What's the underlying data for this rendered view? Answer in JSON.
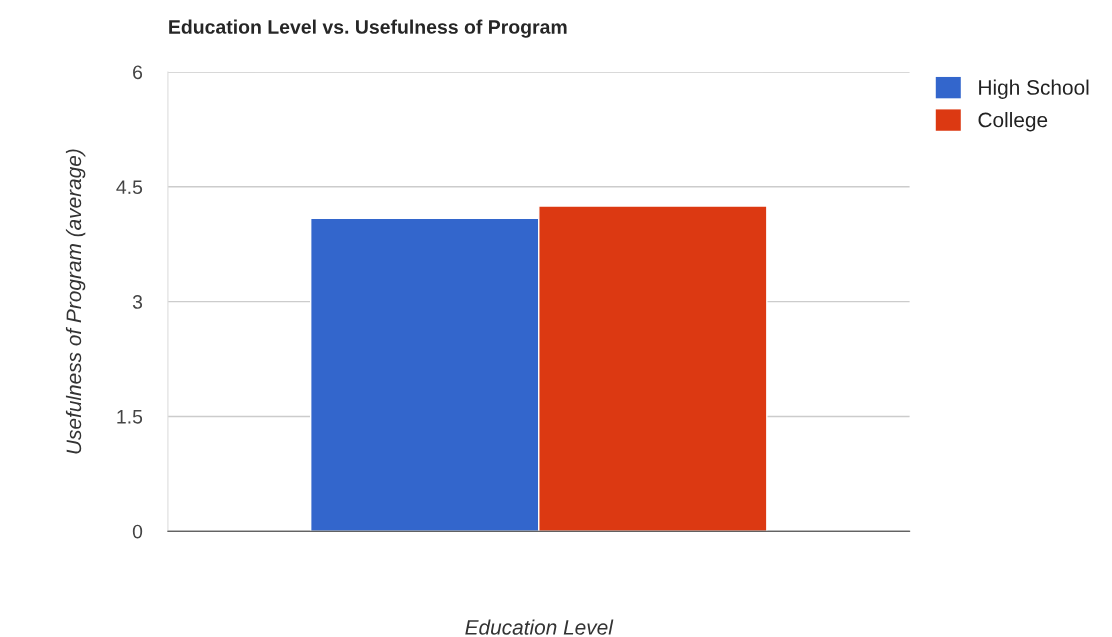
{
  "chart_data": {
    "type": "bar",
    "title": "Education Level vs. Usefulness of Program",
    "xlabel": "Education Level",
    "ylabel": "Usefulness of Program (average)",
    "categories": [
      null
    ],
    "series": [
      {
        "name": "High School",
        "color": "#3366cc",
        "values": [
          4.09
        ]
      },
      {
        "name": "College",
        "color": "#dc3912",
        "values": [
          4.25
        ]
      }
    ],
    "ylim": [
      0,
      6
    ],
    "yticks": [
      0,
      1.5,
      3,
      4.5,
      6
    ],
    "grid": "y",
    "legend": "top right"
  }
}
